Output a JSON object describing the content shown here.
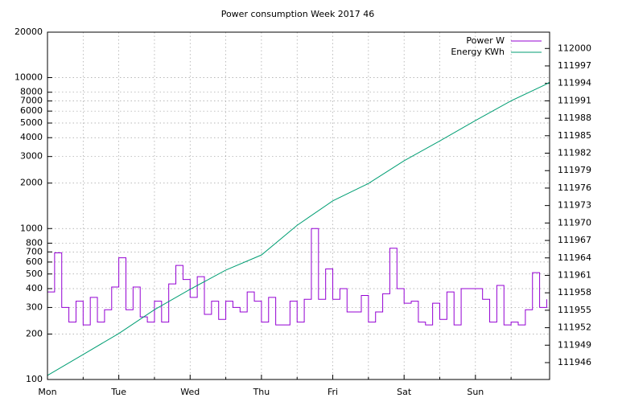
{
  "chart_data": {
    "type": "line",
    "title": "Power consumption Week 2017 46",
    "xlim": [
      0,
      7.04
    ],
    "xticks": [
      {
        "value": 0,
        "label": "Mon"
      },
      {
        "value": 1,
        "label": "Tue"
      },
      {
        "value": 2,
        "label": "Wed"
      },
      {
        "value": 3,
        "label": "Thu"
      },
      {
        "value": 4,
        "label": "Fri"
      },
      {
        "value": 5,
        "label": "Sat"
      },
      {
        "value": 6,
        "label": "Sun"
      }
    ],
    "xminorticks": [
      0.5,
      1.5,
      2.5,
      3.5,
      4.5,
      5.5,
      6.5
    ],
    "ylim": [
      100,
      20000
    ],
    "ylog": true,
    "yticks": [
      100,
      200,
      300,
      400,
      500,
      600,
      700,
      800,
      1000,
      2000,
      3000,
      4000,
      5000,
      6000,
      7000,
      8000,
      10000,
      20000
    ],
    "y2lim": [
      111943.1,
      112002.8
    ],
    "y2ticks": [
      111946,
      111949,
      111952,
      111955,
      111958,
      111961,
      111964,
      111967,
      111970,
      111973,
      111976,
      111979,
      111982,
      111985,
      111988,
      111991,
      111994,
      111997,
      112000
    ],
    "grid": true,
    "legend": "top-right",
    "series": [
      {
        "name": "Power W",
        "color": "#9400d3",
        "step": true,
        "x": [
          0,
          0.1,
          0.2,
          0.3,
          0.4,
          0.5,
          0.6,
          0.7,
          0.8,
          0.9,
          1.0,
          1.1,
          1.2,
          1.3,
          1.4,
          1.5,
          1.6,
          1.7,
          1.8,
          1.9,
          2.0,
          2.1,
          2.2,
          2.3,
          2.4,
          2.5,
          2.6,
          2.7,
          2.8,
          2.9,
          3.0,
          3.1,
          3.2,
          3.3,
          3.4,
          3.5,
          3.6,
          3.7,
          3.8,
          3.9,
          4.0,
          4.1,
          4.2,
          4.3,
          4.4,
          4.5,
          4.6,
          4.7,
          4.8,
          4.9,
          5.0,
          5.1,
          5.2,
          5.3,
          5.4,
          5.5,
          5.6,
          5.7,
          5.8,
          5.9,
          6.0,
          6.1,
          6.2,
          6.3,
          6.4,
          6.5,
          6.6,
          6.7,
          6.8,
          6.9,
          7.0
        ],
        "values": [
          380,
          690,
          300,
          240,
          330,
          230,
          350,
          240,
          290,
          410,
          640,
          290,
          410,
          260,
          240,
          330,
          240,
          430,
          570,
          460,
          350,
          480,
          270,
          330,
          250,
          330,
          300,
          280,
          380,
          330,
          240,
          350,
          230,
          230,
          330,
          240,
          340,
          1000,
          340,
          540,
          340,
          400,
          280,
          280,
          360,
          240,
          280,
          370,
          740,
          400,
          320,
          330,
          240,
          230,
          320,
          250,
          380,
          230,
          400,
          400,
          400,
          340,
          240,
          420,
          230,
          240,
          230,
          290,
          510,
          300,
          340
        ]
      },
      {
        "name": "Energy KWh",
        "color": "#009e73",
        "axis": "y2",
        "x": [
          0,
          0.5,
          1,
          1.5,
          2,
          2.5,
          3,
          3.5,
          4,
          4.5,
          5,
          5.5,
          6,
          6.5,
          7,
          7.04
        ],
        "values": [
          111943.8,
          111947.4,
          111951.0,
          111955.1,
          111958.6,
          111961.9,
          111964.5,
          111969.6,
          111973.8,
          111976.8,
          111980.7,
          111984.1,
          111987.6,
          111991.0,
          111993.9,
          111994.2
        ]
      }
    ]
  }
}
